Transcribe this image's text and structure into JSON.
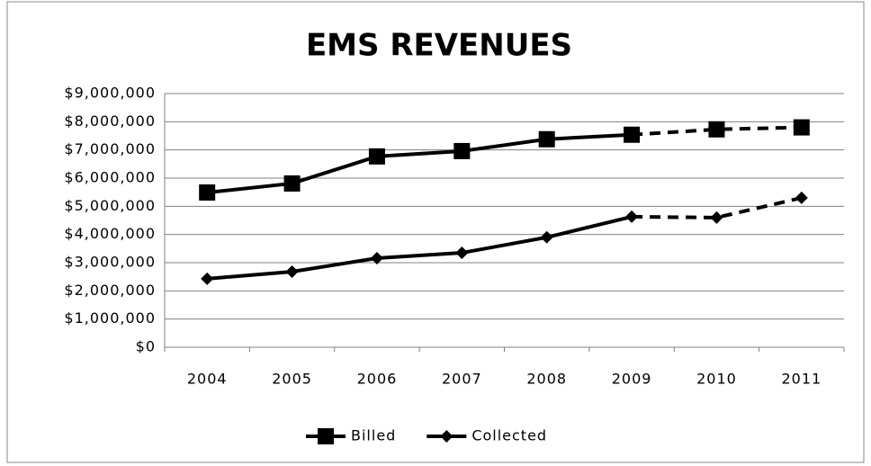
{
  "chart_data": {
    "type": "line",
    "title": "EMS REVENUES",
    "categories": [
      "2004",
      "2005",
      "2006",
      "2007",
      "2008",
      "2009",
      "2010",
      "2011"
    ],
    "series": [
      {
        "name": "Billed",
        "color": "#000000",
        "marker": "square",
        "values": [
          5490000,
          5810000,
          6770000,
          6960000,
          7380000,
          7540000,
          7730000,
          7800000
        ]
      },
      {
        "name": "Collected",
        "color": "#000000",
        "marker": "diamond",
        "values": [
          2430000,
          2680000,
          3160000,
          3350000,
          3900000,
          4630000,
          4600000,
          5300000
        ]
      }
    ],
    "dashed_from_index": 5,
    "ylim": [
      0,
      9000000
    ],
    "yticks": [
      {
        "value": 0,
        "label": "$0"
      },
      {
        "value": 1000000,
        "label": "$1,000,000"
      },
      {
        "value": 2000000,
        "label": "$2,000,000"
      },
      {
        "value": 3000000,
        "label": "$3,000,000"
      },
      {
        "value": 4000000,
        "label": "$4,000,000"
      },
      {
        "value": 5000000,
        "label": "$5,000,000"
      },
      {
        "value": 6000000,
        "label": "$6,000,000"
      },
      {
        "value": 7000000,
        "label": "$7,000,000"
      },
      {
        "value": 8000000,
        "label": "$8,000,000"
      },
      {
        "value": 9000000,
        "label": "$9,000,000"
      }
    ],
    "grid": true,
    "legend": "bottom"
  }
}
